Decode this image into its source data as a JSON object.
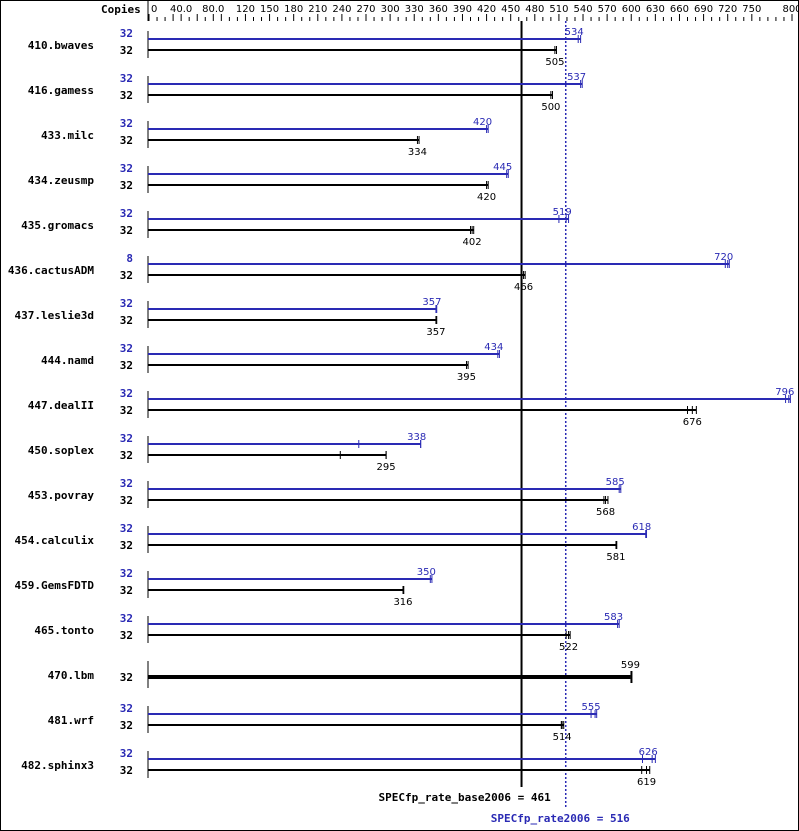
{
  "chart_data": {
    "type": "bar",
    "orientation": "horizontal",
    "axis_header": "Copies",
    "xlim": [
      0,
      800
    ],
    "tick_labels": [
      "0",
      "40.0",
      "80.0",
      "120",
      "150",
      "180",
      "210",
      "240",
      "270",
      "300",
      "330",
      "360",
      "390",
      "420",
      "450",
      "480",
      "510",
      "540",
      "570",
      "600",
      "630",
      "660",
      "690",
      "720",
      "750",
      "800"
    ],
    "tick_values": [
      0,
      40,
      80,
      120,
      150,
      180,
      210,
      240,
      270,
      300,
      330,
      360,
      390,
      420,
      450,
      480,
      510,
      540,
      570,
      600,
      630,
      660,
      690,
      720,
      750,
      800
    ],
    "colors": {
      "peak": "#2a2ab4",
      "base": "#000000"
    },
    "series": [
      {
        "name": "peak",
        "color": "#2a2ab4"
      },
      {
        "name": "base",
        "color": "#000000"
      }
    ],
    "benchmarks": [
      {
        "name": "410.bwaves",
        "peak_copies": "32",
        "peak": 534,
        "peak_max": 537,
        "base_copies": "32",
        "base": 505,
        "base_max": 507
      },
      {
        "name": "416.gamess",
        "peak_copies": "32",
        "peak": 537,
        "peak_max": 539,
        "base_copies": "32",
        "base": 500,
        "base_max": 502
      },
      {
        "name": "433.milc",
        "peak_copies": "32",
        "peak": 420,
        "peak_max": 422,
        "base_copies": "32",
        "base": 334,
        "base_max": 336
      },
      {
        "name": "434.zeusmp",
        "peak_copies": "32",
        "peak": 445,
        "peak_max": 447,
        "base_copies": "32",
        "base": 420,
        "base_max": 422
      },
      {
        "name": "435.gromacs",
        "peak_copies": "32",
        "peak": 519,
        "peak_min": 510,
        "peak_max": 522,
        "base_copies": "32",
        "base": 402,
        "base_min": 400,
        "base_max": 404
      },
      {
        "name": "436.cactusADM",
        "peak_copies": "8",
        "peak": 720,
        "peak_min": 717,
        "peak_max": 722,
        "base_copies": "32",
        "base": 466,
        "base_max": 468
      },
      {
        "name": "437.leslie3d",
        "peak_copies": "32",
        "peak": 357,
        "peak_max": 358,
        "base_copies": "32",
        "base": 357,
        "base_max": 358
      },
      {
        "name": "444.namd",
        "peak_copies": "32",
        "peak": 434,
        "peak_max": 436,
        "base_copies": "32",
        "base": 395,
        "base_max": 397
      },
      {
        "name": "447.dealII",
        "peak_copies": "32",
        "peak": 796,
        "peak_min": 792,
        "peak_max": 798,
        "base_copies": "32",
        "base": 676,
        "base_min": 670,
        "base_max": 681
      },
      {
        "name": "450.soplex",
        "peak_copies": "32",
        "peak": 338,
        "peak_min": 261,
        "peak_max": 338,
        "base_copies": "32",
        "base": 295,
        "base_min": 238,
        "base_max": 295
      },
      {
        "name": "453.povray",
        "peak_copies": "32",
        "peak": 585,
        "peak_max": 587,
        "base_copies": "32",
        "base": 568,
        "base_min": 566,
        "base_max": 571
      },
      {
        "name": "454.calculix",
        "peak_copies": "32",
        "peak": 618,
        "peak_max": 619,
        "base_copies": "32",
        "base": 581,
        "base_max": 582
      },
      {
        "name": "459.GemsFDTD",
        "peak_copies": "32",
        "peak": 350,
        "peak_max": 352,
        "base_copies": "32",
        "base": 316,
        "base_max": 317
      },
      {
        "name": "465.tonto",
        "peak_copies": "32",
        "peak": 583,
        "peak_max": 585,
        "base_copies": "32",
        "base": 522,
        "base_min": 519,
        "base_max": 524
      },
      {
        "name": "470.lbm",
        "peak_copies": "",
        "peak": null,
        "base_copies": "32",
        "base": 599,
        "base_max": 600,
        "thick": true
      },
      {
        "name": "481.wrf",
        "peak_copies": "32",
        "peak": 555,
        "peak_min": 550,
        "peak_max": 557,
        "base_copies": "32",
        "base": 514,
        "base_min": 513,
        "base_max": 516
      },
      {
        "name": "482.sphinx3",
        "peak_copies": "32",
        "peak": 626,
        "peak_min": 614,
        "peak_max": 630,
        "base_copies": "32",
        "base": 619,
        "base_min": 613,
        "base_max": 623
      }
    ],
    "reference_lines": [
      {
        "label": "SPECfp_rate_base2006 = 461",
        "value": 461,
        "style": "solid",
        "color": "#000000"
      },
      {
        "label": "SPECfp_rate2006 = 516",
        "value": 516,
        "style": "dotted",
        "color": "#2a2ab4"
      }
    ]
  }
}
